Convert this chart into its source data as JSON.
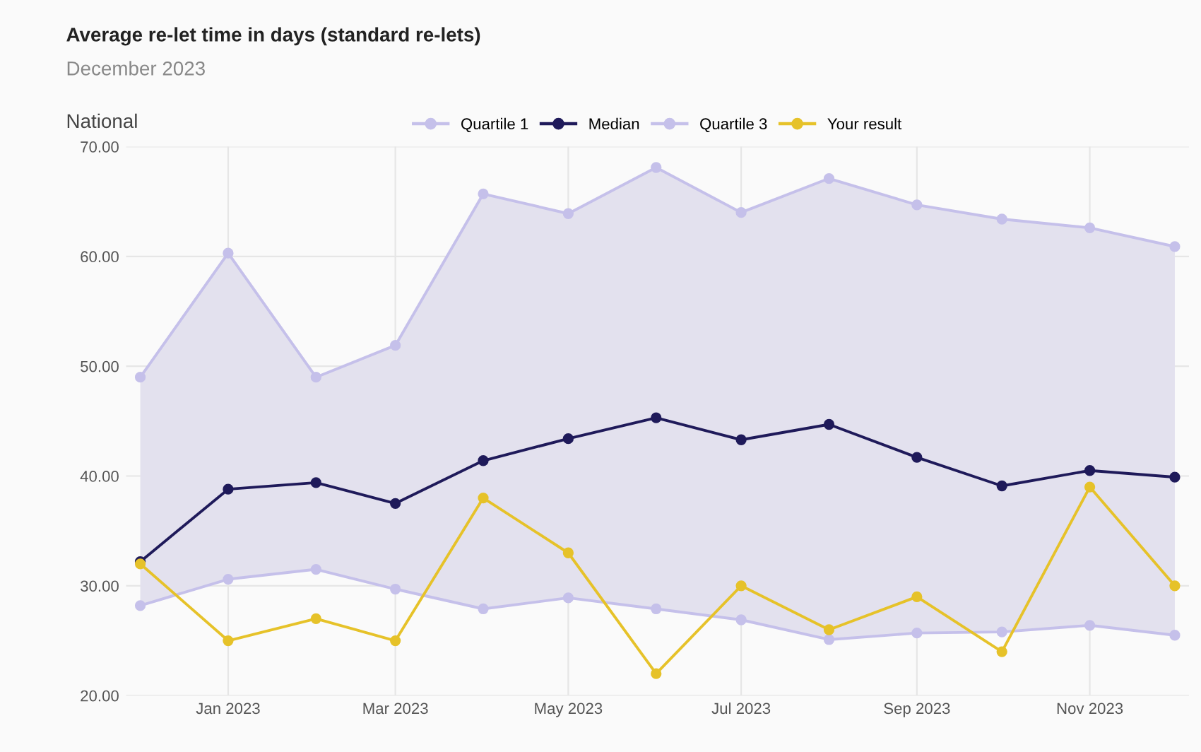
{
  "chart_data": {
    "type": "line",
    "title": "Average re-let time in days (standard re-lets)",
    "subtitle": "December 2023",
    "annotations": [
      "National"
    ],
    "x": [
      "2022-12",
      "2023-01",
      "2023-02",
      "2023-03",
      "2023-04",
      "2023-05",
      "2023-06",
      "2023-07",
      "2023-08",
      "2023-09",
      "2023-10",
      "2023-11",
      "2023-12"
    ],
    "series": [
      {
        "name": "Quartile 1",
        "color": "#c5c0ea",
        "values": [
          28.2,
          30.6,
          31.5,
          29.7,
          27.9,
          28.9,
          27.9,
          26.9,
          25.1,
          25.7,
          25.8,
          26.4,
          25.5
        ]
      },
      {
        "name": "Median",
        "color": "#1f1a5a",
        "values": [
          32.2,
          38.8,
          39.4,
          37.5,
          41.4,
          43.4,
          45.3,
          43.3,
          44.7,
          41.7,
          39.1,
          40.5,
          39.9
        ],
        "lower": [
          28.2,
          30.6,
          31.5,
          29.7,
          27.9,
          28.9,
          27.9,
          26.9,
          25.1,
          25.7,
          25.8,
          26.4,
          25.5
        ],
        "upper": [
          49.0,
          60.3,
          49.0,
          51.9,
          65.7,
          63.9,
          68.1,
          64.0,
          67.1,
          64.7,
          63.4,
          62.6,
          60.9
        ]
      },
      {
        "name": "Quartile 3",
        "color": "#c5c0ea",
        "values": [
          49.0,
          60.3,
          49.0,
          51.9,
          65.7,
          63.9,
          68.1,
          64.0,
          67.1,
          64.7,
          63.4,
          62.6,
          60.9
        ]
      },
      {
        "name": "Your result",
        "color": "#e6c229",
        "values": [
          32,
          25,
          27,
          25,
          38,
          33,
          22,
          30,
          26,
          29,
          24,
          39,
          30
        ]
      }
    ],
    "xlim": [
      "2022-11-26",
      "2023-12-06"
    ],
    "xticks": [
      {
        "value": "2023-01",
        "label": "Jan 2023"
      },
      {
        "value": "2023-03",
        "label": "Mar 2023"
      },
      {
        "value": "2023-05",
        "label": "May 2023"
      },
      {
        "value": "2023-07",
        "label": "Jul 2023"
      },
      {
        "value": "2023-09",
        "label": "Sep 2023"
      },
      {
        "value": "2023-11",
        "label": "Nov 2023"
      }
    ],
    "ylim": [
      20,
      70
    ],
    "yticks": [
      {
        "value": 20,
        "label": "20.00"
      },
      {
        "value": 30,
        "label": "30.00"
      },
      {
        "value": 40,
        "label": "40.00"
      },
      {
        "value": 50,
        "label": "50.00"
      },
      {
        "value": 60,
        "label": "60.00"
      },
      {
        "value": 70,
        "label": "70.00"
      }
    ],
    "grid": true,
    "legend": "top",
    "marker": "circle",
    "line_style": "solid"
  }
}
